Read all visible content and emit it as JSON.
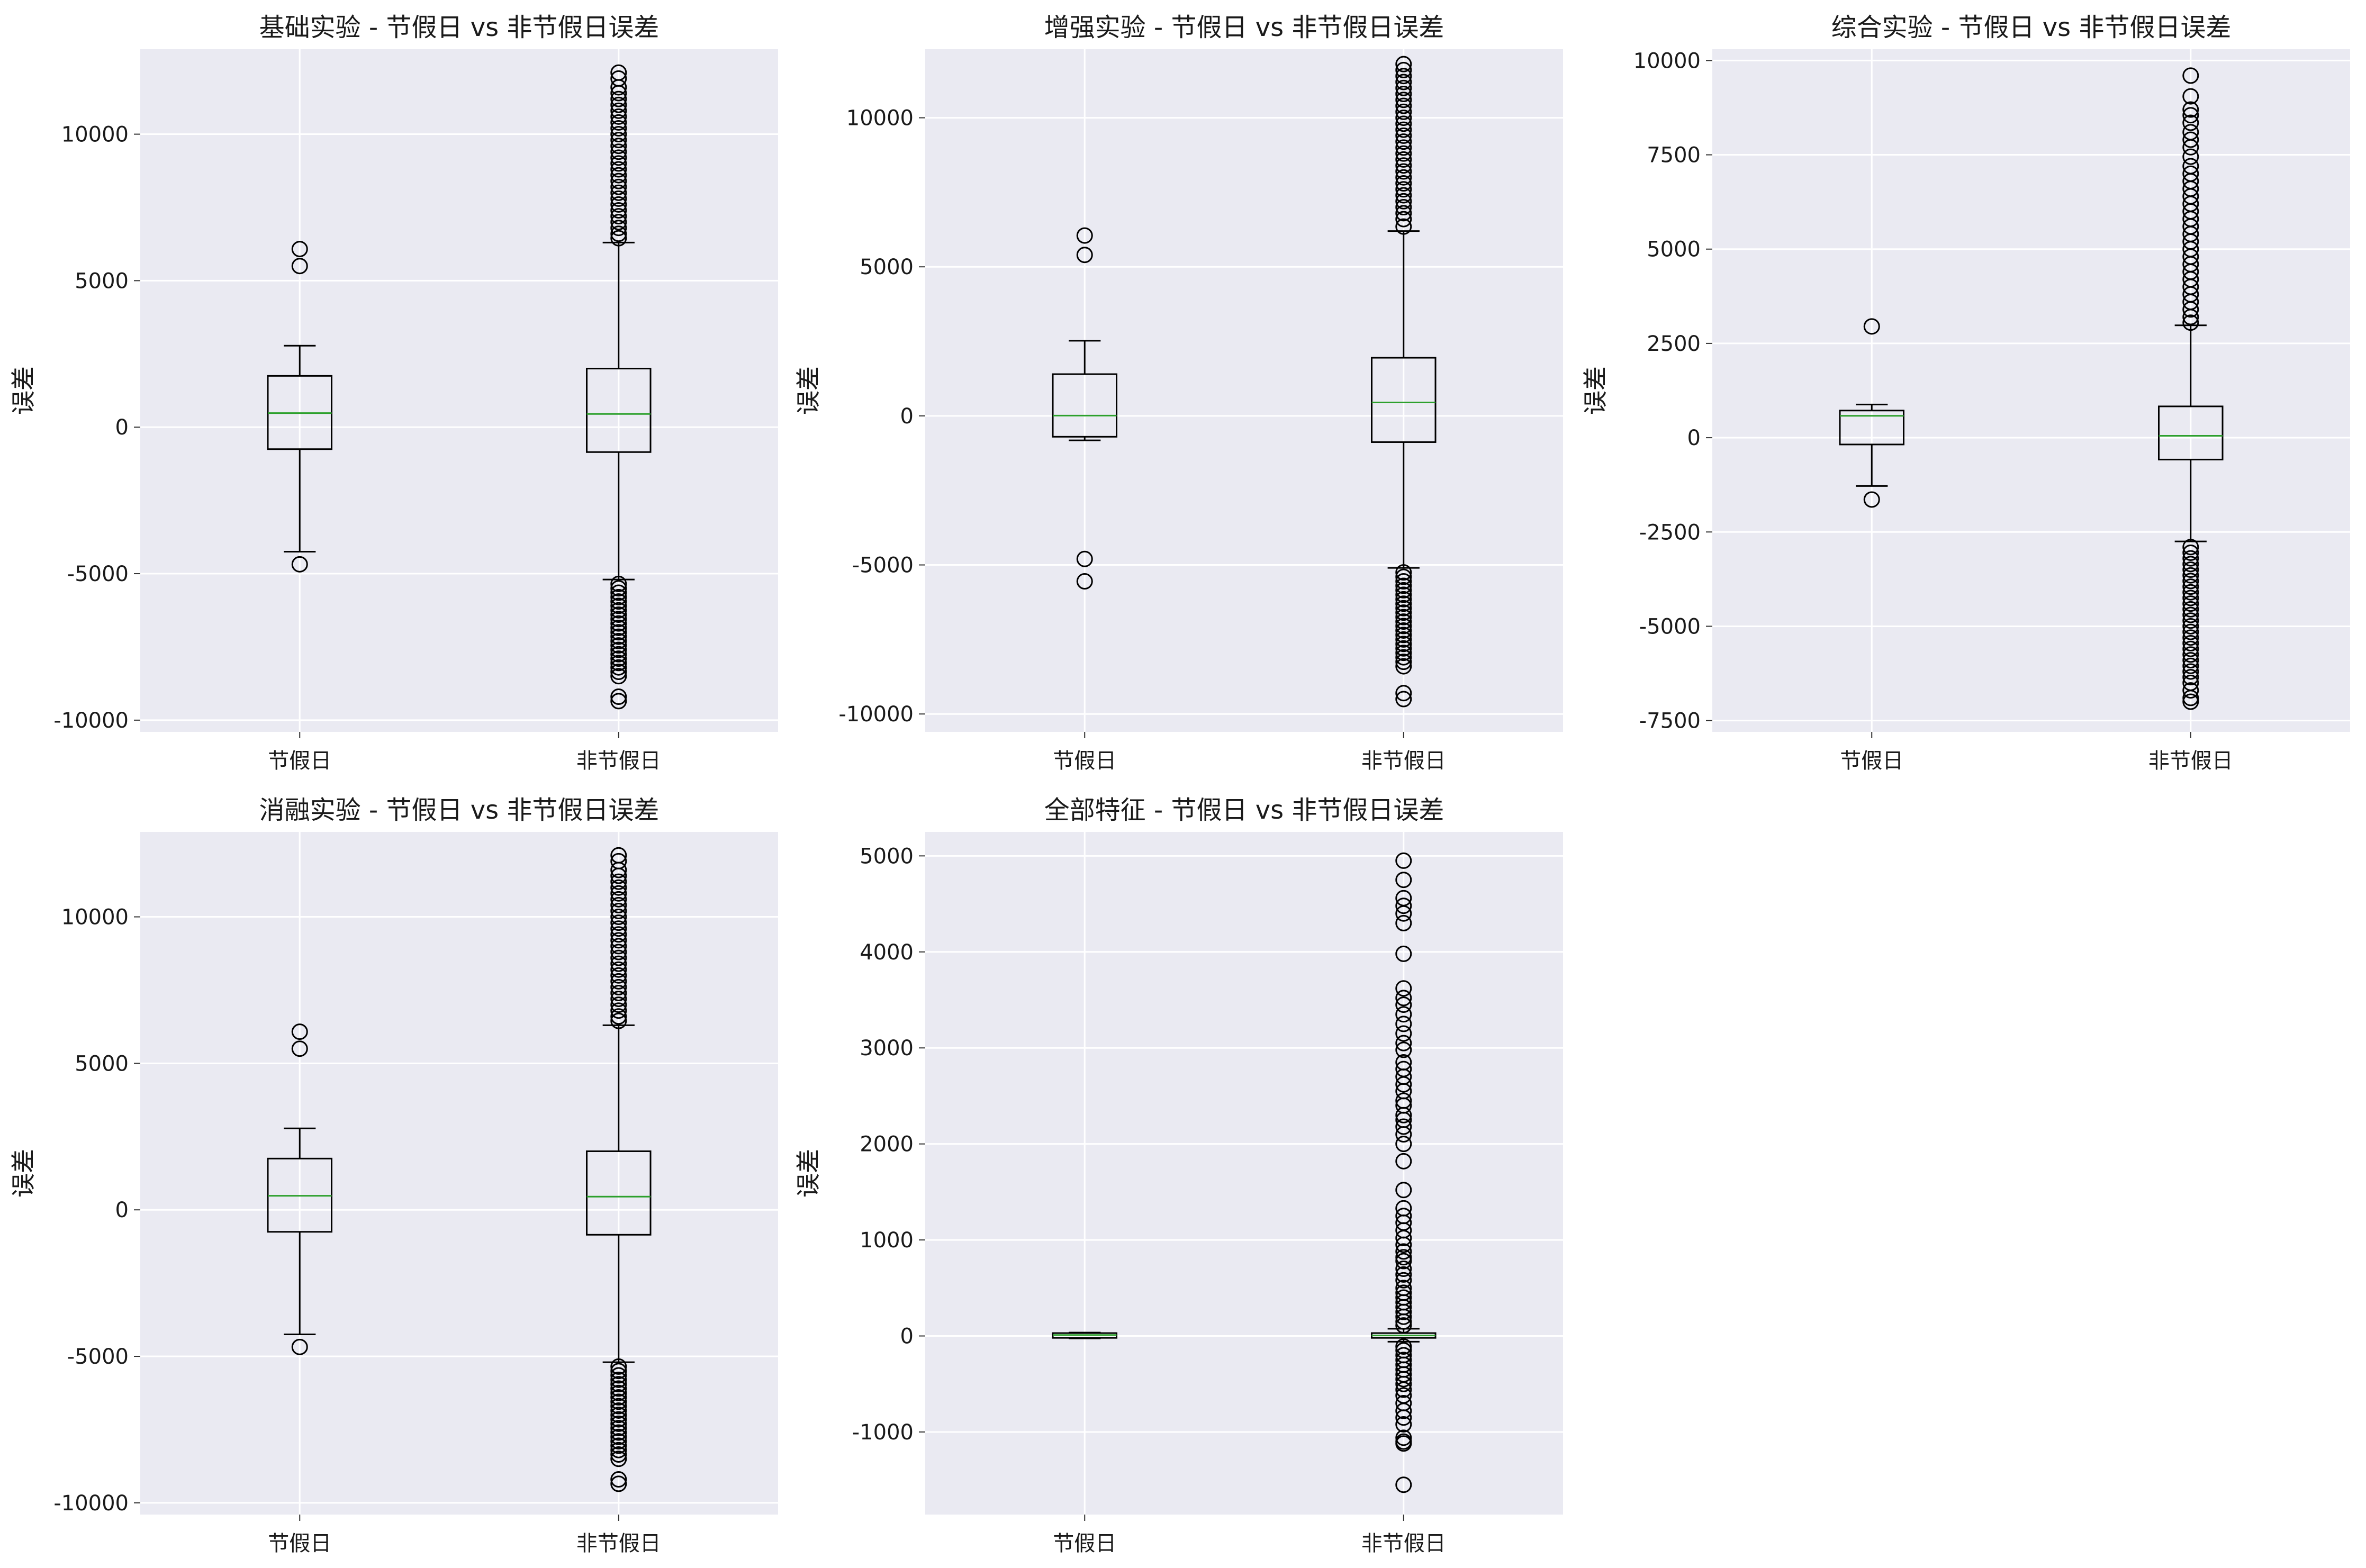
{
  "chart_data": [
    {
      "type": "box",
      "title": "基础实验 - 节假日 vs 非节假日误差",
      "ylabel": "误差",
      "categories": [
        "节假日",
        "非节假日"
      ],
      "ylim": [
        -10400,
        12900
      ],
      "yticks": [
        -10000,
        -5000,
        0,
        5000,
        10000
      ],
      "yticklabels": [
        "-10000",
        "-5000",
        "0",
        "5000",
        "10000"
      ],
      "grid": true,
      "boxes": [
        {
          "category": "节假日",
          "whisker_low": -4250,
          "q1": -750,
          "median": 480,
          "q3": 1750,
          "whisker_high": 2780,
          "outliers": [
            6080,
            5500,
            -4680
          ]
        },
        {
          "category": "非节假日",
          "whisker_low": -5200,
          "q1": -850,
          "median": 450,
          "q3": 2000,
          "whisker_high": 6300,
          "outliers": [
            12100,
            11900,
            11600,
            11400,
            11200,
            11000,
            10800,
            10600,
            10400,
            10200,
            10000,
            9800,
            9600,
            9400,
            9200,
            9000,
            8800,
            8600,
            8400,
            8200,
            8000,
            7800,
            7600,
            7400,
            7200,
            7000,
            6800,
            6600,
            6450,
            -5350,
            -5500,
            -5650,
            -5800,
            -5950,
            -6100,
            -6250,
            -6400,
            -6550,
            -6700,
            -6850,
            -7000,
            -7150,
            -7300,
            -7450,
            -7600,
            -7750,
            -7900,
            -8050,
            -8200,
            -8350,
            -8500,
            -9200,
            -9350
          ]
        }
      ]
    },
    {
      "type": "box",
      "title": "增强实验 - 节假日 vs 非节假日误差",
      "ylabel": "误差",
      "categories": [
        "节假日",
        "非节假日"
      ],
      "ylim": [
        -10600,
        12300
      ],
      "yticks": [
        -10000,
        -5000,
        0,
        5000,
        10000
      ],
      "yticklabels": [
        "-10000",
        "-5000",
        "0",
        "5000",
        "10000"
      ],
      "grid": true,
      "boxes": [
        {
          "category": "节假日",
          "whisker_low": -820,
          "q1": -700,
          "median": 10,
          "q3": 1400,
          "whisker_high": 2520,
          "outliers": [
            6050,
            5400,
            -4800,
            -5550
          ]
        },
        {
          "category": "非节假日",
          "whisker_low": -5100,
          "q1": -880,
          "median": 450,
          "q3": 1950,
          "whisker_high": 6200,
          "outliers": [
            11800,
            11600,
            11400,
            11200,
            11000,
            10800,
            10600,
            10400,
            10200,
            10000,
            9800,
            9600,
            9400,
            9200,
            9000,
            8800,
            8600,
            8400,
            8200,
            8000,
            7800,
            7600,
            7400,
            7200,
            7000,
            6800,
            6600,
            6350,
            -5250,
            -5400,
            -5550,
            -5700,
            -5850,
            -6000,
            -6150,
            -6300,
            -6450,
            -6600,
            -6750,
            -6900,
            -7050,
            -7200,
            -7350,
            -7500,
            -7650,
            -7800,
            -7950,
            -8100,
            -8250,
            -8400,
            -9300,
            -9500
          ]
        }
      ]
    },
    {
      "type": "box",
      "title": "综合实验 - 节假日 vs 非节假日误差",
      "ylabel": "误差",
      "categories": [
        "节假日",
        "非节假日"
      ],
      "ylim": [
        -7800,
        10300
      ],
      "yticks": [
        -7500,
        -5000,
        -2500,
        0,
        2500,
        5000,
        7500,
        10000
      ],
      "yticklabels": [
        "-7500",
        "-5000",
        "-2500",
        "0",
        "2500",
        "5000",
        "7500",
        "10000"
      ],
      "grid": true,
      "boxes": [
        {
          "category": "节假日",
          "whisker_low": -1280,
          "q1": -180,
          "median": 580,
          "q3": 720,
          "whisker_high": 880,
          "outliers": [
            2950,
            -1640
          ]
        },
        {
          "category": "非节假日",
          "whisker_low": -2750,
          "q1": -580,
          "median": 50,
          "q3": 830,
          "whisker_high": 2980,
          "outliers": [
            9600,
            9050,
            8700,
            8550,
            8350,
            8100,
            7900,
            7700,
            7450,
            7200,
            7000,
            6800,
            6600,
            6400,
            6200,
            6000,
            5800,
            5600,
            5400,
            5200,
            5000,
            4800,
            4600,
            4400,
            4200,
            4000,
            3800,
            3600,
            3400,
            3200,
            3050,
            -2900,
            -3050,
            -3200,
            -3350,
            -3500,
            -3650,
            -3800,
            -3950,
            -4100,
            -4250,
            -4400,
            -4550,
            -4700,
            -4850,
            -5000,
            -5150,
            -5300,
            -5450,
            -5600,
            -5750,
            -5900,
            -6050,
            -6200,
            -6350,
            -6500,
            -6700,
            -6900,
            -7000
          ]
        }
      ]
    },
    {
      "type": "box",
      "title": "消融实验 - 节假日 vs 非节假日误差",
      "ylabel": "误差",
      "categories": [
        "节假日",
        "非节假日"
      ],
      "ylim": [
        -10400,
        12900
      ],
      "yticks": [
        -10000,
        -5000,
        0,
        5000,
        10000
      ],
      "yticklabels": [
        "-10000",
        "-5000",
        "0",
        "5000",
        "10000"
      ],
      "grid": true,
      "boxes": [
        {
          "category": "节假日",
          "whisker_low": -4250,
          "q1": -750,
          "median": 480,
          "q3": 1750,
          "whisker_high": 2780,
          "outliers": [
            6080,
            5500,
            -4680
          ]
        },
        {
          "category": "非节假日",
          "whisker_low": -5200,
          "q1": -850,
          "median": 450,
          "q3": 2000,
          "whisker_high": 6300,
          "outliers": [
            12100,
            11900,
            11600,
            11400,
            11200,
            11000,
            10800,
            10600,
            10400,
            10200,
            10000,
            9800,
            9600,
            9400,
            9200,
            9000,
            8800,
            8600,
            8400,
            8200,
            8000,
            7800,
            7600,
            7400,
            7200,
            7000,
            6800,
            6600,
            6450,
            -5350,
            -5500,
            -5650,
            -5800,
            -5950,
            -6100,
            -6250,
            -6400,
            -6550,
            -6700,
            -6850,
            -7000,
            -7150,
            -7300,
            -7450,
            -7600,
            -7750,
            -7900,
            -8050,
            -8200,
            -8350,
            -8500,
            -9200,
            -9350
          ]
        }
      ]
    },
    {
      "type": "box",
      "title": "全部特征 - 节假日 vs 非节假日误差",
      "ylabel": "误差",
      "categories": [
        "节假日",
        "非节假日"
      ],
      "ylim": [
        -1860,
        5250
      ],
      "yticks": [
        -1000,
        0,
        1000,
        2000,
        3000,
        4000,
        5000
      ],
      "yticklabels": [
        "-1000",
        "0",
        "1000",
        "2000",
        "3000",
        "4000",
        "5000"
      ],
      "grid": true,
      "boxes": [
        {
          "category": "节假日",
          "whisker_low": -25,
          "q1": -20,
          "median": 10,
          "q3": 30,
          "whisker_high": 35,
          "outliers": []
        },
        {
          "category": "非节假日",
          "whisker_low": -60,
          "q1": -20,
          "median": 5,
          "q3": 30,
          "whisker_high": 75,
          "outliers": [
            4950,
            4750,
            4560,
            4480,
            4400,
            4300,
            3980,
            3620,
            3520,
            3450,
            3350,
            3250,
            3150,
            3050,
            2980,
            2850,
            2780,
            2700,
            2620,
            2550,
            2450,
            2400,
            2300,
            2250,
            2180,
            2100,
            2000,
            1820,
            1520,
            1330,
            1250,
            1180,
            1100,
            1020,
            950,
            880,
            820,
            780,
            700,
            640,
            580,
            500,
            450,
            400,
            350,
            300,
            250,
            200,
            150,
            110,
            -110,
            -150,
            -200,
            -250,
            -300,
            -350,
            -400,
            -450,
            -500,
            -560,
            -620,
            -700,
            -780,
            -850,
            -920,
            -1060,
            -1100,
            -1120,
            -1550
          ]
        }
      ]
    }
  ]
}
